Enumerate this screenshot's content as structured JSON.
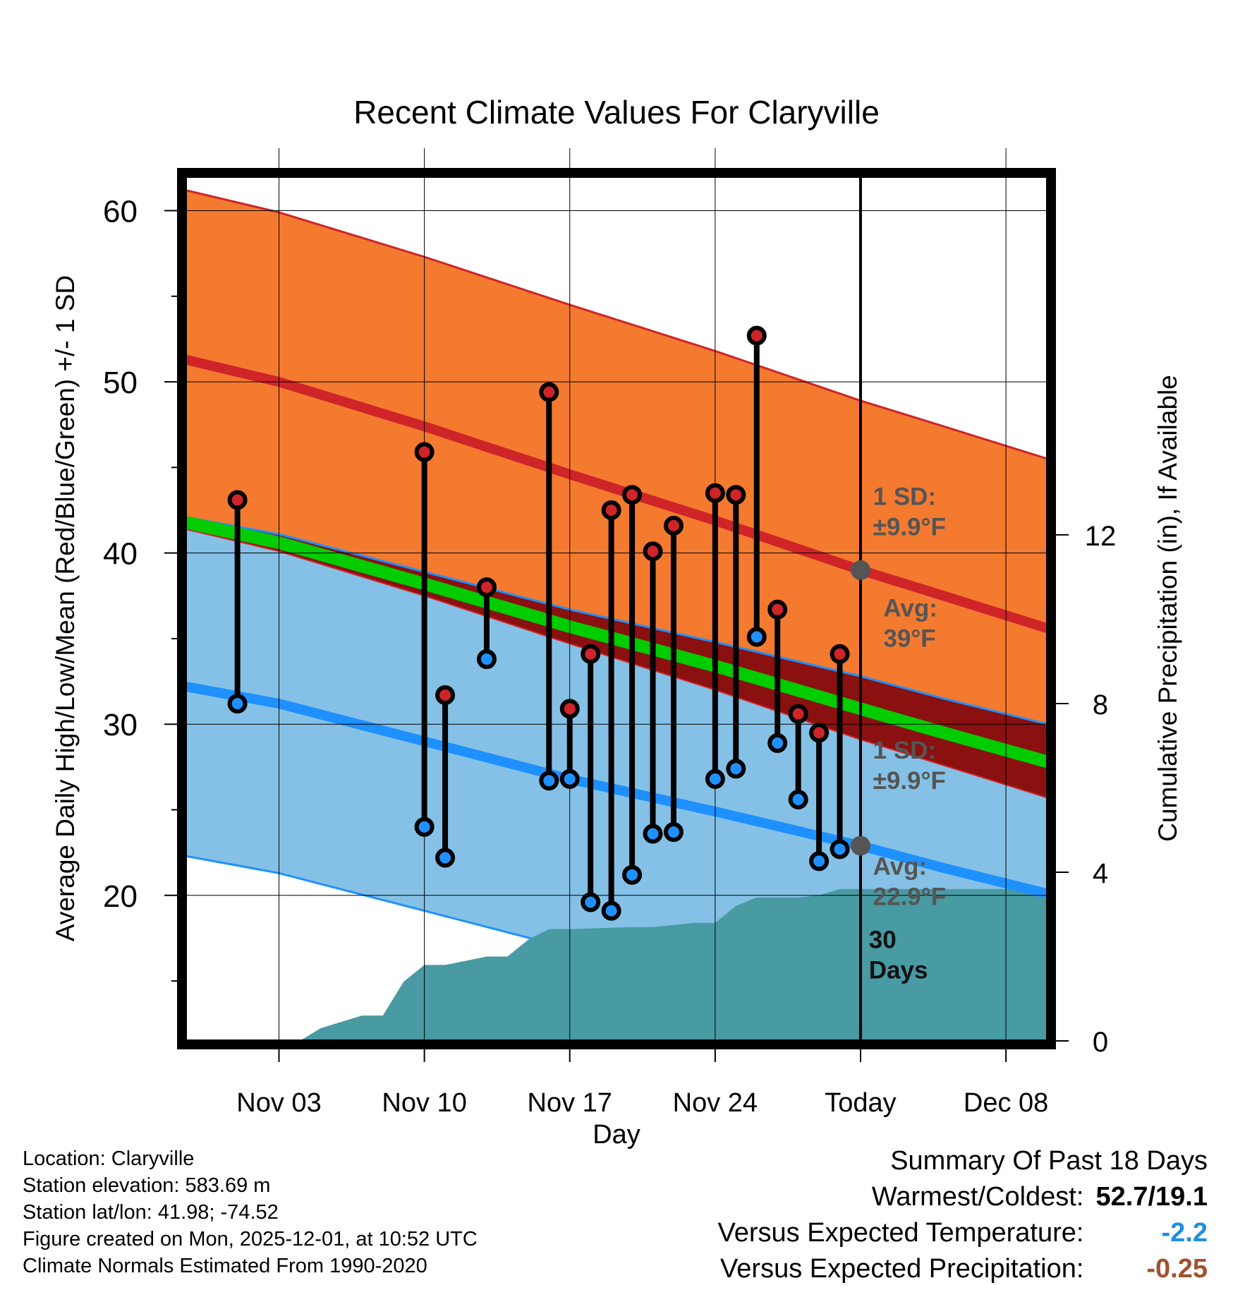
{
  "chart_data": {
    "type": "line",
    "title": "Recent Climate Values For Claryville",
    "xlabel": "Day",
    "ylabel": "Average Daily High/Low/Mean (Red/Blue/Green) +/- 1 SD",
    "ylabel_right": "Cumulative Precipitation (in), If Available",
    "ylim": [
      11.5,
      62
    ],
    "ylim_right": [
      0,
      20.5
    ],
    "xlim": [
      -4.5,
      37
    ],
    "x_ticks": [
      {
        "day": 0,
        "label": "Nov 03"
      },
      {
        "day": 7,
        "label": "Nov 10"
      },
      {
        "day": 14,
        "label": "Nov 17"
      },
      {
        "day": 21,
        "label": "Nov 24"
      },
      {
        "day": 28,
        "label": "Today"
      },
      {
        "day": 35,
        "label": "Dec 08"
      }
    ],
    "y_ticks": [
      20,
      30,
      40,
      50,
      60
    ],
    "y_minor_ticks": [
      15,
      25,
      35,
      45,
      55
    ],
    "y_ticks_right": [
      0,
      4,
      8,
      12
    ],
    "normals": {
      "x": [
        -4.5,
        0,
        7,
        14,
        21,
        28,
        32,
        37
      ],
      "high_mean": [
        51.3,
        50.0,
        47.4,
        44.6,
        41.9,
        39.0,
        37.5,
        35.6
      ],
      "high_sd": 9.9,
      "low_mean": [
        32.2,
        31.2,
        29.0,
        26.8,
        24.9,
        22.9,
        21.6,
        20.1
      ],
      "low_sd": 9.9,
      "mean": [
        41.8,
        40.6,
        38.2,
        35.7,
        33.4,
        30.9,
        29.5,
        27.8
      ]
    },
    "observations": [
      {
        "day": -2,
        "high": 43.1,
        "low": 31.2
      },
      {
        "day": 7,
        "high": 45.9,
        "low": 24.0
      },
      {
        "day": 8,
        "high": 31.7,
        "low": 22.2
      },
      {
        "day": 10,
        "high": 38.0,
        "low": 33.8
      },
      {
        "day": 13,
        "high": 49.4,
        "low": 26.7
      },
      {
        "day": 14,
        "high": 30.9,
        "low": 26.8
      },
      {
        "day": 15,
        "high": 34.1,
        "low": 19.6
      },
      {
        "day": 16,
        "high": 42.5,
        "low": 19.1
      },
      {
        "day": 17,
        "high": 43.4,
        "low": 21.2
      },
      {
        "day": 18,
        "high": 40.1,
        "low": 23.6
      },
      {
        "day": 19,
        "high": 41.6,
        "low": 23.7
      },
      {
        "day": 21,
        "high": 43.5,
        "low": 26.8
      },
      {
        "day": 22,
        "high": 43.4,
        "low": 27.4
      },
      {
        "day": 23,
        "high": 52.7,
        "low": 35.1
      },
      {
        "day": 24,
        "high": 36.7,
        "low": 28.9
      },
      {
        "day": 25,
        "high": 30.6,
        "low": 25.6
      },
      {
        "day": 26,
        "high": 29.5,
        "low": 22.0
      },
      {
        "day": 27,
        "high": 34.1,
        "low": 22.7
      }
    ],
    "precipitation": {
      "day": [
        -3,
        1,
        2,
        3,
        4,
        5,
        6,
        7,
        8,
        9,
        10,
        11,
        12,
        13,
        14,
        17,
        18,
        19,
        20,
        21,
        22,
        23,
        25,
        26,
        27,
        28,
        37
      ],
      "cum_in": [
        0,
        0.0,
        0.3,
        0.45,
        0.6,
        0.6,
        1.4,
        1.8,
        1.8,
        1.9,
        2.0,
        2.0,
        2.4,
        2.65,
        2.65,
        2.7,
        2.7,
        2.75,
        2.8,
        2.8,
        3.2,
        3.4,
        3.4,
        3.45,
        3.6,
        3.6,
        3.6
      ]
    },
    "today_day": 28,
    "annotations": {
      "high_sd": [
        "1 SD:",
        "±9.9°F"
      ],
      "high_avg": [
        "Avg:",
        "39°F"
      ],
      "low_sd": [
        "1 SD:",
        "±9.9°F"
      ],
      "low_avg": [
        "Avg:",
        "22.9°F"
      ],
      "window": [
        "30",
        "Days"
      ]
    }
  },
  "footer": {
    "location": "Location: Claryville",
    "elevation": "Station elevation: 583.69 m",
    "latlon": "Station lat/lon: 41.98; -74.52",
    "created": "Figure created on Mon, 2025-12-01, at 10:52 UTC",
    "normals": "Climate Normals Estimated From 1990-2020"
  },
  "summary": {
    "title": "Summary Of Past 18 Days",
    "warm_cold_label": "Warmest/Coldest:",
    "warm_cold_value": "52.7/19.1",
    "temp_label": "Versus Expected Temperature:",
    "temp_value": "-2.2",
    "precip_label": "Versus Expected Precipitation:",
    "precip_value": "-0.25"
  },
  "colors": {
    "high_band": "#f47a30",
    "high_line": "#cf2428",
    "low_band": "#85c1e6",
    "low_line": "#1e90ff",
    "mean_line": "#00cc00",
    "overlap": "#8b1010",
    "precip": "#489aa3",
    "annotation": "#555555",
    "high_dot": "#cf2428",
    "low_dot": "#1e90ff"
  }
}
